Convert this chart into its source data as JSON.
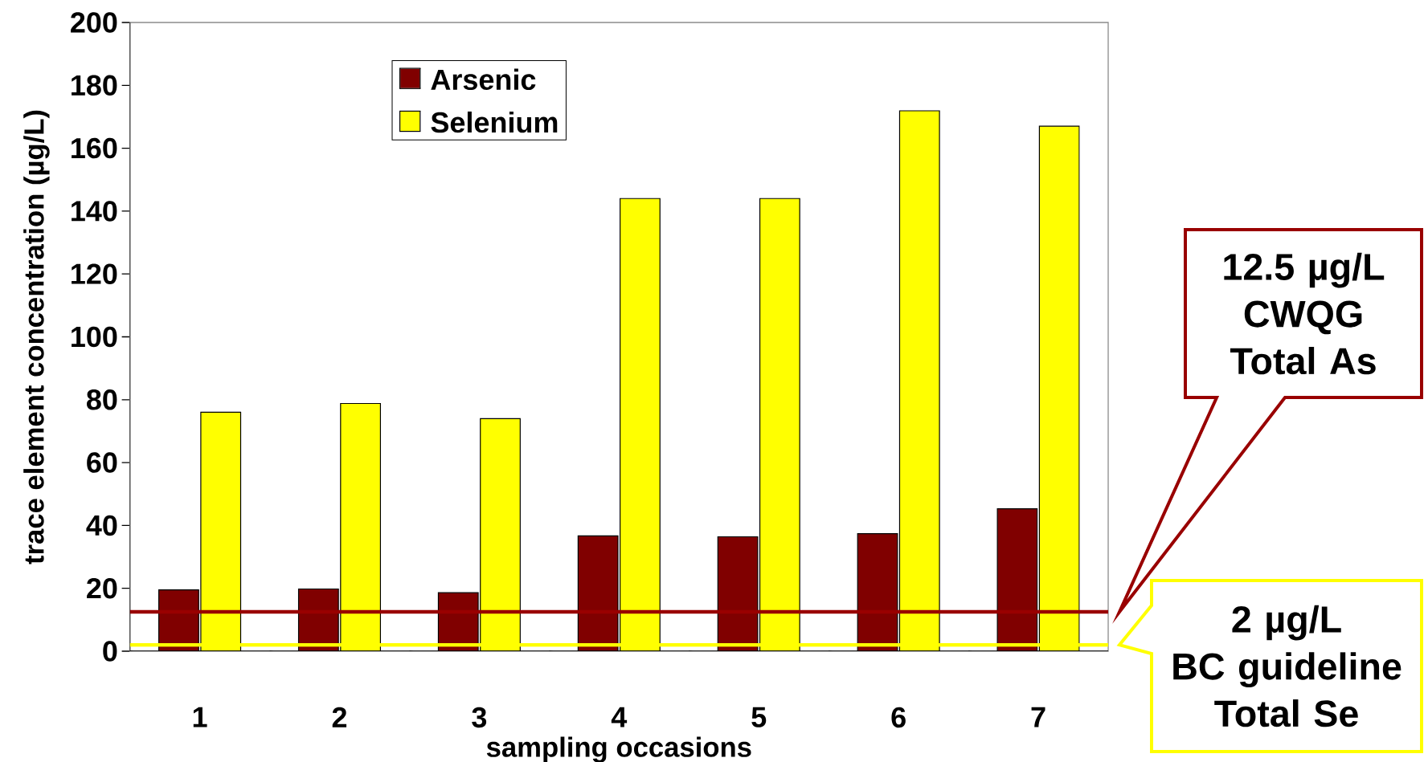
{
  "chart_data": {
    "type": "bar",
    "xlabel": "sampling occasions",
    "ylabel": "trace element concentration (µg/L)",
    "categories": [
      "1",
      "2",
      "3",
      "4",
      "5",
      "6",
      "7"
    ],
    "series": [
      {
        "name": "Arsenic",
        "color": "#800000",
        "values": [
          19.5,
          19.8,
          18.6,
          36.7,
          36.4,
          37.4,
          45.3
        ]
      },
      {
        "name": "Selenium",
        "color": "#ffff00",
        "values": [
          76,
          78.8,
          74,
          144,
          144,
          171.9,
          167
        ]
      }
    ],
    "ylim": [
      0,
      200
    ],
    "yticks": [
      0,
      20,
      40,
      60,
      80,
      100,
      120,
      140,
      160,
      180,
      200
    ],
    "legend": "top",
    "grid": false,
    "ref_lines": [
      {
        "axis": "y",
        "value": 12.5,
        "color": "#990000"
      },
      {
        "axis": "y",
        "value": 2,
        "color": "#ffff00"
      }
    ],
    "annotations": [
      "12.5 µg/L",
      "CWQG Total As",
      "2 µg/L",
      "BC guideline Total Se"
    ]
  }
}
